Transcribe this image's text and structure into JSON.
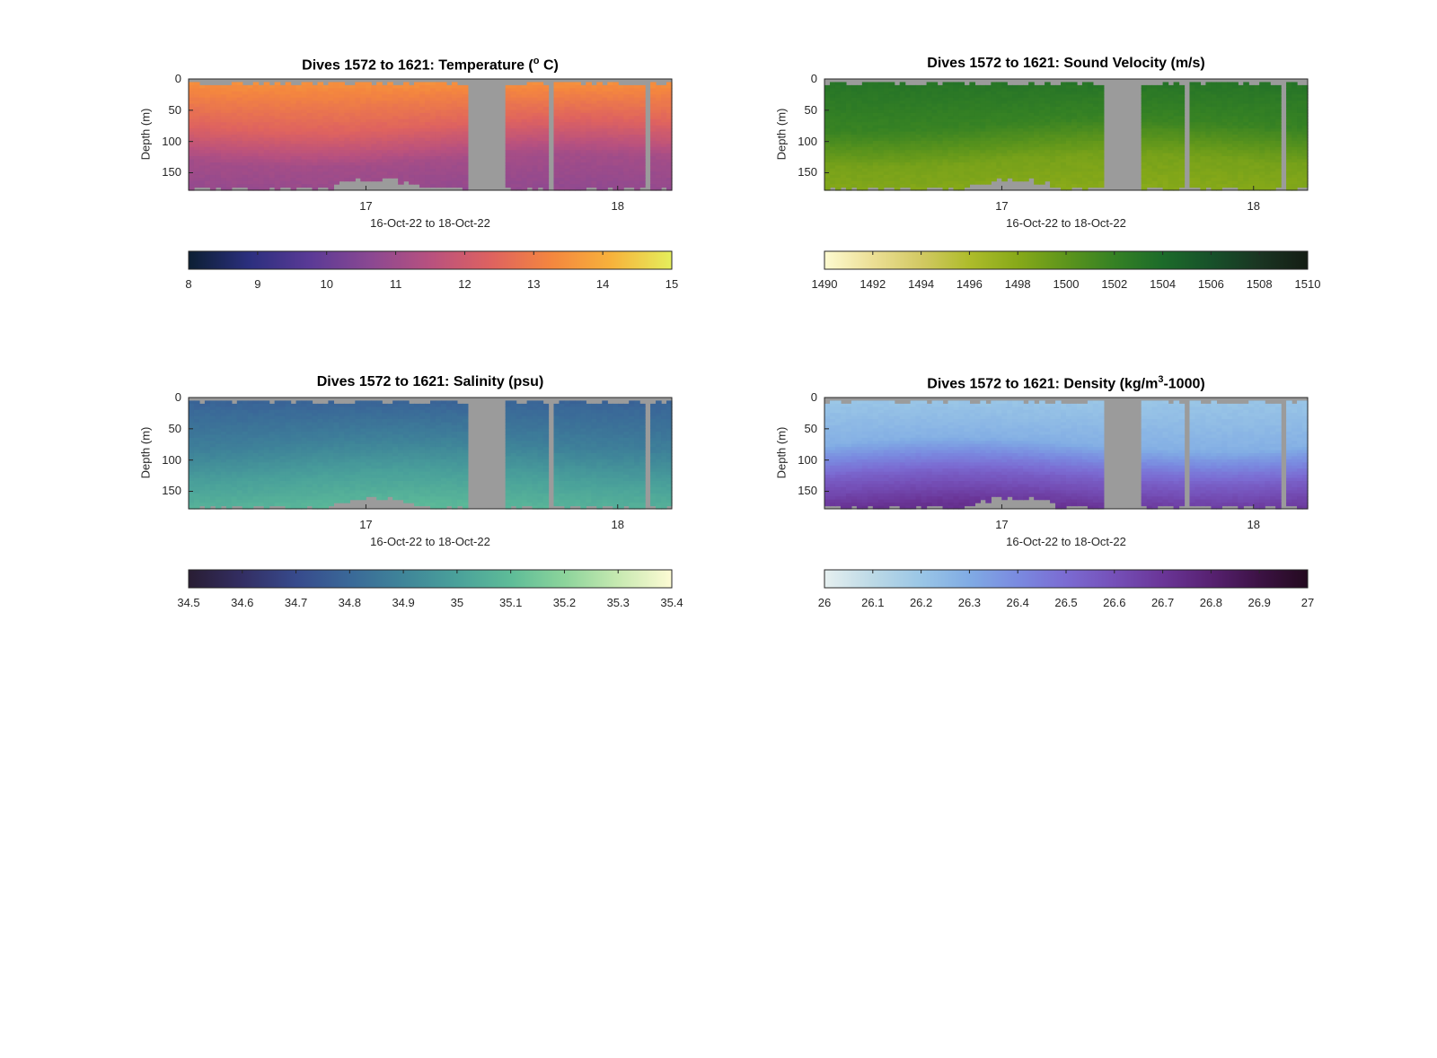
{
  "chart_data": [
    {
      "type": "heatmap",
      "title_main": "Dives 1572 to 1621: Temperature (",
      "title_sup": "o",
      "title_tail": " C)",
      "ylabel": "Depth (m)",
      "xlabel": "16-Oct-22 to 18-Oct-22",
      "yticks": [
        "0",
        "50",
        "100",
        "150"
      ],
      "xticks": [
        "17",
        "18"
      ],
      "ylim": [
        0,
        178
      ],
      "y_reversed": true,
      "colorbar": {
        "ticks": [
          "8",
          "9",
          "10",
          "11",
          "12",
          "13",
          "14",
          "15"
        ],
        "range": [
          8,
          15
        ],
        "colors": [
          "#0c1f33",
          "#2b2f7e",
          "#5a3a96",
          "#8a4892",
          "#b8517f",
          "#de6260",
          "#f4863f",
          "#f7b23b",
          "#e5ef5c"
        ]
      },
      "profile": {
        "surface": 13.5,
        "mid": 12.4,
        "deep": 11.1,
        "bottom": 10.8
      },
      "gap_color": "#9b9b9b"
    },
    {
      "type": "heatmap",
      "title_main": "Dives 1572 to 1621: Sound Velocity (m/s)",
      "title_sup": "",
      "title_tail": "",
      "ylabel": "Depth (m)",
      "xlabel": "16-Oct-22 to 18-Oct-22",
      "yticks": [
        "0",
        "50",
        "100",
        "150"
      ],
      "xticks": [
        "17",
        "18"
      ],
      "ylim": [
        0,
        178
      ],
      "y_reversed": true,
      "colorbar": {
        "ticks": [
          "1490",
          "1492",
          "1494",
          "1496",
          "1498",
          "1500",
          "1502",
          "1504",
          "1506",
          "1508",
          "1510"
        ],
        "range": [
          1490,
          1510
        ],
        "colors": [
          "#fdfad0",
          "#ecdf95",
          "#d2c963",
          "#aebc2b",
          "#87a919",
          "#5d951c",
          "#358124",
          "#1c6b2a",
          "#17512a",
          "#1a3522",
          "#141d14"
        ]
      },
      "profile": {
        "surface": 1503.2,
        "mid": 1501.8,
        "deep": 1498.8,
        "bottom": 1498.0
      },
      "gap_color": "#9b9b9b"
    },
    {
      "type": "heatmap",
      "title_main": "Dives 1572 to 1621: Salinity (psu)",
      "title_sup": "",
      "title_tail": "",
      "ylabel": "Depth (m)",
      "xlabel": "16-Oct-22 to 18-Oct-22",
      "yticks": [
        "0",
        "50",
        "100",
        "150"
      ],
      "xticks": [
        "17",
        "18"
      ],
      "ylim": [
        0,
        178
      ],
      "y_reversed": true,
      "colorbar": {
        "ticks": [
          "34.5",
          "34.6",
          "34.7",
          "34.8",
          "34.9",
          "35",
          "35.1",
          "35.2",
          "35.3",
          "35.4"
        ],
        "range": [
          34.5,
          35.4
        ],
        "colors": [
          "#291d33",
          "#332e63",
          "#374a8c",
          "#3a6898",
          "#3f8599",
          "#4aa19a",
          "#5ebc98",
          "#8cd49b",
          "#c7e9b1",
          "#fdfbd4"
        ]
      },
      "profile": {
        "surface": 34.78,
        "mid": 34.88,
        "deep": 35.0,
        "bottom": 35.08
      },
      "gap_color": "#9b9b9b"
    },
    {
      "type": "heatmap",
      "title_main": "Dives 1572 to 1621: Density (kg/m",
      "title_sup": "3",
      "title_tail": "-1000)",
      "ylabel": "Depth (m)",
      "xlabel": "16-Oct-22 to 18-Oct-22",
      "yticks": [
        "0",
        "50",
        "100",
        "150"
      ],
      "xticks": [
        "17",
        "18"
      ],
      "ylim": [
        0,
        178
      ],
      "y_reversed": true,
      "colorbar": {
        "ticks": [
          "26",
          "26.1",
          "26.2",
          "26.3",
          "26.4",
          "26.5",
          "26.6",
          "26.7",
          "26.8",
          "26.9",
          "27"
        ],
        "range": [
          26,
          27
        ],
        "colors": [
          "#e6f0f0",
          "#bcd9e6",
          "#9ac6e6",
          "#80abe4",
          "#7a8ae0",
          "#7b6bd2",
          "#7550b8",
          "#6a3597",
          "#572171",
          "#3c1244",
          "#240a1f"
        ]
      },
      "profile": {
        "surface": 26.2,
        "mid": 26.28,
        "deep": 26.55,
        "bottom": 26.72
      },
      "gap_color": "#9b9b9b"
    }
  ]
}
